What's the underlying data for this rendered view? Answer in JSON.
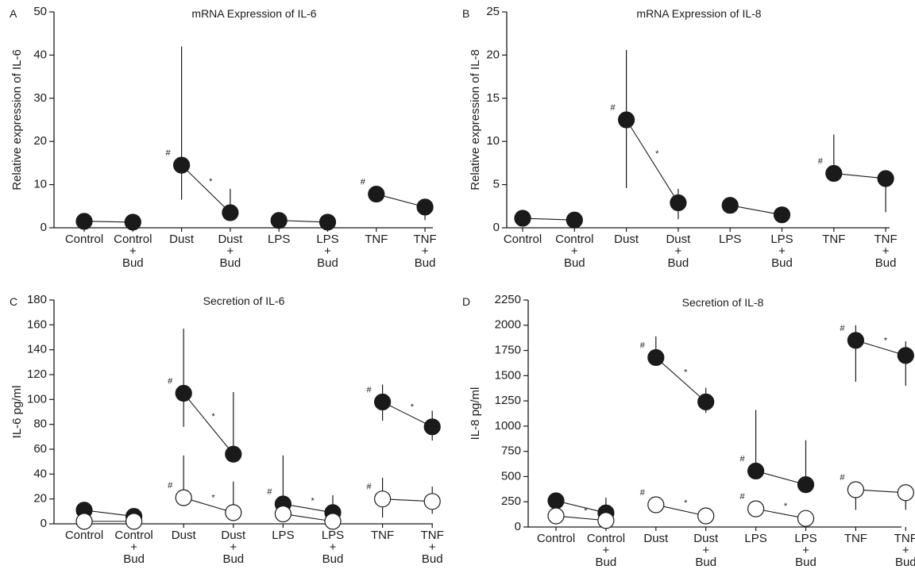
{
  "colors": {
    "filled": "#1a1a1a",
    "open": "#ffffff",
    "stroke": "#1a1a1a"
  },
  "chart_data": [
    {
      "type": "scatter",
      "panel": "A",
      "title": "mRNA Expression of IL-6",
      "ylabel": "Relative expression of IL-6",
      "xlabel": "",
      "ylim": [
        0,
        50
      ],
      "yticks": [
        0,
        10,
        20,
        30,
        40,
        50
      ],
      "categories": [
        {
          "lines": [
            "Control"
          ]
        },
        {
          "lines": [
            "Control",
            "+",
            "Bud"
          ]
        },
        {
          "lines": [
            "Dust"
          ]
        },
        {
          "lines": [
            "Dust",
            "+",
            "Bud"
          ]
        },
        {
          "lines": [
            "LPS"
          ]
        },
        {
          "lines": [
            "LPS",
            "+",
            "Bud"
          ]
        },
        {
          "lines": [
            "TNF"
          ]
        },
        {
          "lines": [
            "TNF",
            "+",
            "Bud"
          ]
        }
      ],
      "series": [
        {
          "fill": "filled",
          "points": [
            {
              "cat": 0,
              "y": 1.5,
              "err": [
                1.5,
                1.5
              ]
            },
            {
              "cat": 1,
              "y": 1.3,
              "err": [
                1.3,
                1.3
              ]
            },
            {
              "cat": 2,
              "y": 14.5,
              "err": [
                6.5,
                42
              ],
              "mark": "#"
            },
            {
              "cat": 3,
              "y": 3.5,
              "err": [
                3.5,
                9
              ],
              "mark": "*"
            },
            {
              "cat": 4,
              "y": 1.7,
              "err": [
                1.7,
                1.7
              ]
            },
            {
              "cat": 5,
              "y": 1.3,
              "err": [
                1.3,
                1.3
              ]
            },
            {
              "cat": 6,
              "y": 7.8,
              "err": [
                7.8,
                7.8
              ],
              "mark": "#"
            },
            {
              "cat": 7,
              "y": 4.8,
              "err": [
                1.8,
                6.5
              ]
            }
          ],
          "segments": [
            [
              0,
              1
            ],
            [
              2,
              3
            ],
            [
              4,
              5
            ],
            [
              6,
              7
            ]
          ]
        }
      ]
    },
    {
      "type": "scatter",
      "panel": "B",
      "title": "mRNA Expression of IL-8",
      "ylabel": "Relative expression of IL-8",
      "xlabel": "",
      "ylim": [
        0,
        25
      ],
      "yticks": [
        0,
        5,
        10,
        15,
        20,
        25
      ],
      "categories": [
        {
          "lines": [
            "Control"
          ]
        },
        {
          "lines": [
            "Control",
            "+",
            "Bud"
          ]
        },
        {
          "lines": [
            "Dust"
          ]
        },
        {
          "lines": [
            "Dust",
            "+",
            "Bud"
          ]
        },
        {
          "lines": [
            "LPS"
          ]
        },
        {
          "lines": [
            "LPS",
            "+",
            "Bud"
          ]
        },
        {
          "lines": [
            "TNF"
          ]
        },
        {
          "lines": [
            "TNF",
            "+",
            "Bud"
          ]
        }
      ],
      "series": [
        {
          "fill": "filled",
          "points": [
            {
              "cat": 0,
              "y": 1.1,
              "err": [
                1.1,
                1.1
              ]
            },
            {
              "cat": 1,
              "y": 0.9,
              "err": [
                0.9,
                0.9
              ]
            },
            {
              "cat": 2,
              "y": 12.5,
              "err": [
                4.6,
                20.6
              ],
              "mark": "#"
            },
            {
              "cat": 3,
              "y": 2.9,
              "err": [
                1.0,
                4.5
              ],
              "mark": "*"
            },
            {
              "cat": 4,
              "y": 2.6,
              "err": [
                1.8,
                3.5
              ]
            },
            {
              "cat": 5,
              "y": 1.5,
              "err": [
                0.7,
                2.2
              ]
            },
            {
              "cat": 6,
              "y": 6.3,
              "err": [
                6.3,
                10.8
              ],
              "mark": "#"
            },
            {
              "cat": 7,
              "y": 5.7,
              "err": [
                1.8,
                5.7
              ]
            }
          ],
          "segments": [
            [
              0,
              1
            ],
            [
              2,
              3
            ],
            [
              4,
              5
            ],
            [
              6,
              7
            ]
          ]
        }
      ]
    },
    {
      "type": "scatter",
      "panel": "C",
      "title": "Secretion of IL-6",
      "ylabel": "IL-6 pg/ml",
      "xlabel": "",
      "ylim": [
        0,
        180
      ],
      "yticks": [
        0,
        20,
        40,
        60,
        80,
        100,
        120,
        140,
        160,
        180
      ],
      "categories": [
        {
          "lines": [
            "Control"
          ]
        },
        {
          "lines": [
            "Control",
            "+",
            "Bud"
          ]
        },
        {
          "lines": [
            "Dust"
          ]
        },
        {
          "lines": [
            "Dust",
            "+",
            "Bud"
          ]
        },
        {
          "lines": [
            "LPS"
          ]
        },
        {
          "lines": [
            "LPS",
            "+",
            "Bud"
          ]
        },
        {
          "lines": [
            "TNF"
          ]
        },
        {
          "lines": [
            "TNF",
            "+",
            "Bud"
          ]
        }
      ],
      "series": [
        {
          "fill": "filled",
          "points": [
            {
              "cat": 0,
              "y": 11,
              "err": [
                11,
                11
              ]
            },
            {
              "cat": 1,
              "y": 6,
              "err": [
                6,
                6
              ]
            },
            {
              "cat": 2,
              "y": 105,
              "err": [
                78,
                157
              ],
              "mark": "#"
            },
            {
              "cat": 3,
              "y": 56,
              "err": [
                56,
                106
              ],
              "mark": "*"
            },
            {
              "cat": 4,
              "y": 16,
              "err": [
                16,
                55
              ],
              "mark": "#"
            },
            {
              "cat": 5,
              "y": 9,
              "err": [
                9,
                23
              ],
              "mark": "*"
            },
            {
              "cat": 6,
              "y": 98,
              "err": [
                83,
                112
              ],
              "mark": "#"
            },
            {
              "cat": 7,
              "y": 78,
              "err": [
                67,
                91
              ],
              "mark": "*"
            }
          ],
          "segments": [
            [
              0,
              1
            ],
            [
              2,
              3
            ],
            [
              4,
              5
            ],
            [
              6,
              7
            ]
          ]
        },
        {
          "fill": "open",
          "points": [
            {
              "cat": 0,
              "y": 2,
              "err": [
                2,
                2
              ]
            },
            {
              "cat": 1,
              "y": 2,
              "err": [
                2,
                2
              ]
            },
            {
              "cat": 2,
              "y": 21,
              "err": [
                21,
                55
              ],
              "mark": "#"
            },
            {
              "cat": 3,
              "y": 9,
              "err": [
                9,
                34
              ],
              "mark": "*"
            },
            {
              "cat": 4,
              "y": 8,
              "err": [
                8,
                8
              ]
            },
            {
              "cat": 5,
              "y": 2,
              "err": [
                2,
                2
              ]
            },
            {
              "cat": 6,
              "y": 20,
              "err": [
                5,
                37
              ],
              "mark": "#"
            },
            {
              "cat": 7,
              "y": 18,
              "err": [
                8,
                30
              ]
            }
          ],
          "segments": [
            [
              0,
              1
            ],
            [
              2,
              3
            ],
            [
              4,
              5
            ],
            [
              6,
              7
            ]
          ]
        }
      ]
    },
    {
      "type": "scatter",
      "panel": "D",
      "title": "Secretion of IL-8",
      "ylabel": "IL-8 pg/ml",
      "xlabel": "",
      "ylim": [
        0,
        2250
      ],
      "yticks": [
        0,
        250,
        500,
        750,
        1000,
        1250,
        1500,
        1750,
        2000,
        2250
      ],
      "categories": [
        {
          "lines": [
            "Control"
          ]
        },
        {
          "lines": [
            "Control",
            "+",
            "Bud"
          ]
        },
        {
          "lines": [
            "Dust"
          ]
        },
        {
          "lines": [
            "Dust",
            "+",
            "Bud"
          ]
        },
        {
          "lines": [
            "LPS"
          ]
        },
        {
          "lines": [
            "LPS",
            "+",
            "Bud"
          ]
        },
        {
          "lines": [
            "TNF"
          ]
        },
        {
          "lines": [
            "TNF",
            "+",
            "Bud"
          ]
        }
      ],
      "series": [
        {
          "fill": "filled",
          "points": [
            {
              "cat": 0,
              "y": 260,
              "err": [
                260,
                260
              ]
            },
            {
              "cat": 1,
              "y": 140,
              "err": [
                140,
                290
              ]
            },
            {
              "cat": 2,
              "y": 1680,
              "err": [
                1680,
                1890
              ],
              "mark": "#"
            },
            {
              "cat": 3,
              "y": 1240,
              "err": [
                1130,
                1380
              ],
              "mark": "*"
            },
            {
              "cat": 4,
              "y": 555,
              "err": [
                555,
                1160
              ],
              "mark": "#"
            },
            {
              "cat": 5,
              "y": 420,
              "err": [
                420,
                860
              ]
            },
            {
              "cat": 6,
              "y": 1850,
              "err": [
                1440,
                2000
              ],
              "mark": "#"
            },
            {
              "cat": 7,
              "y": 1700,
              "err": [
                1400,
                1840
              ],
              "mark": "*"
            }
          ],
          "segments": [
            [
              0,
              1
            ],
            [
              2,
              3
            ],
            [
              4,
              5
            ],
            [
              6,
              7
            ]
          ]
        },
        {
          "fill": "open",
          "points": [
            {
              "cat": 0,
              "y": 110,
              "err": [
                110,
                110
              ]
            },
            {
              "cat": 1,
              "y": 65,
              "err": [
                65,
                65
              ],
              "mark": "*"
            },
            {
              "cat": 2,
              "y": 220,
              "err": [
                220,
                220
              ],
              "mark": "#"
            },
            {
              "cat": 3,
              "y": 110,
              "err": [
                110,
                110
              ],
              "mark": "*"
            },
            {
              "cat": 4,
              "y": 180,
              "err": [
                180,
                180
              ],
              "mark": "#"
            },
            {
              "cat": 5,
              "y": 85,
              "err": [
                85,
                85
              ],
              "mark": "*"
            },
            {
              "cat": 6,
              "y": 370,
              "err": [
                170,
                370
              ],
              "mark": "#"
            },
            {
              "cat": 7,
              "y": 340,
              "err": [
                170,
                340
              ]
            }
          ],
          "segments": [
            [
              0,
              1
            ],
            [
              2,
              3
            ],
            [
              4,
              5
            ],
            [
              6,
              7
            ]
          ]
        }
      ]
    }
  ]
}
